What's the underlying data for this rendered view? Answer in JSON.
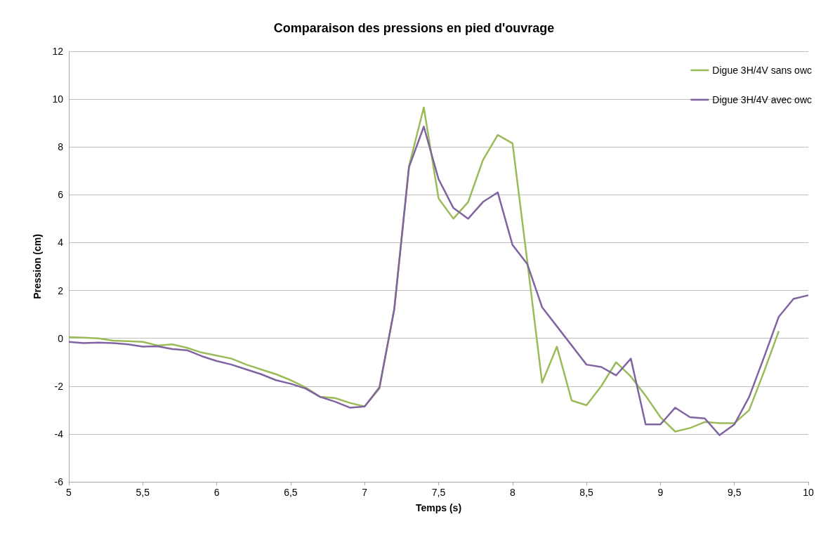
{
  "chart_data": {
    "type": "line",
    "title": "Comparaison des pressions en pied d'ouvrage",
    "xlabel": "Temps (s)",
    "ylabel": "Pression (cm)",
    "xlim": [
      5,
      10
    ],
    "xticks": [
      5,
      {
        "value": 5.5,
        "label": "5,5"
      },
      6,
      {
        "value": 6.5,
        "label": "6,5"
      },
      7,
      {
        "value": 7.5,
        "label": "7,5"
      },
      8,
      {
        "value": 8.5,
        "label": "8,5"
      },
      9,
      {
        "value": 9.5,
        "label": "9,5"
      },
      10
    ],
    "ylim": [
      -6,
      12
    ],
    "yticks": [
      -6,
      -4,
      -2,
      0,
      2,
      4,
      6,
      8,
      10,
      12
    ],
    "grid": "y",
    "legend": "top right",
    "marker": "none",
    "line_style": "solid",
    "series": [
      {
        "name": "Digue 3H/4V sans owc",
        "color": "#9bbb59",
        "x": [
          5,
          5.1,
          5.2,
          5.3,
          5.4,
          5.5,
          5.6,
          5.7,
          5.8,
          5.9,
          6,
          6.1,
          6.2,
          6.3,
          6.4,
          6.5,
          6.6,
          6.7,
          6.8,
          6.9,
          7,
          7.1,
          7.2,
          7.3,
          7.4,
          7.5,
          7.6,
          7.7,
          7.8,
          7.9,
          8,
          8.1,
          8.2,
          8.3,
          8.4,
          8.5,
          8.6,
          8.7,
          8.8,
          8.9,
          9,
          9.1,
          9.2,
          9.3,
          9.4,
          9.5,
          9.6,
          9.7,
          9.8
        ],
        "values": [
          0.05,
          0.03,
          0,
          -0.1,
          -0.12,
          -0.15,
          -0.3,
          -0.25,
          -0.4,
          -0.6,
          -0.72,
          -0.85,
          -1.1,
          -1.3,
          -1.5,
          -1.75,
          -2.05,
          -2.45,
          -2.5,
          -2.7,
          -2.85,
          -2.1,
          1.2,
          7.2,
          9.65,
          5.85,
          5,
          5.7,
          7.45,
          8.5,
          8.15,
          3.2,
          -1.85,
          -0.35,
          -2.6,
          -2.8,
          -2,
          -1,
          -1.6,
          -2.4,
          -3.3,
          -3.9,
          -3.75,
          -3.5,
          -3.55,
          -3.55,
          -3,
          -1.4,
          0.3
        ]
      },
      {
        "name": "Digue 3H/4V avec owc",
        "color": "#8064a2",
        "x": [
          5,
          5.1,
          5.2,
          5.3,
          5.4,
          5.5,
          5.6,
          5.7,
          5.8,
          5.9,
          6,
          6.1,
          6.2,
          6.3,
          6.4,
          6.5,
          6.6,
          6.7,
          6.8,
          6.9,
          7,
          7.1,
          7.2,
          7.3,
          7.4,
          7.5,
          7.6,
          7.7,
          7.8,
          7.9,
          8,
          8.1,
          8.2,
          8.3,
          8.4,
          8.5,
          8.6,
          8.7,
          8.8,
          8.9,
          9,
          9.1,
          9.2,
          9.3,
          9.4,
          9.5,
          9.6,
          9.7,
          9.8,
          9.9,
          10
        ],
        "values": [
          -0.15,
          -0.2,
          -0.18,
          -0.2,
          -0.25,
          -0.35,
          -0.33,
          -0.45,
          -0.5,
          -0.75,
          -0.95,
          -1.1,
          -1.3,
          -1.5,
          -1.75,
          -1.9,
          -2.1,
          -2.45,
          -2.65,
          -2.9,
          -2.85,
          -2.05,
          1.2,
          7.15,
          8.85,
          6.65,
          5.45,
          5,
          5.7,
          6.1,
          3.9,
          3.1,
          1.3,
          0.5,
          -0.3,
          -1.1,
          -1.2,
          -1.55,
          -0.85,
          -3.6,
          -3.6,
          -2.9,
          -3.3,
          -3.35,
          -4.05,
          -3.6,
          -2.45,
          -0.8,
          0.9,
          1.65,
          1.8
        ]
      }
    ]
  }
}
